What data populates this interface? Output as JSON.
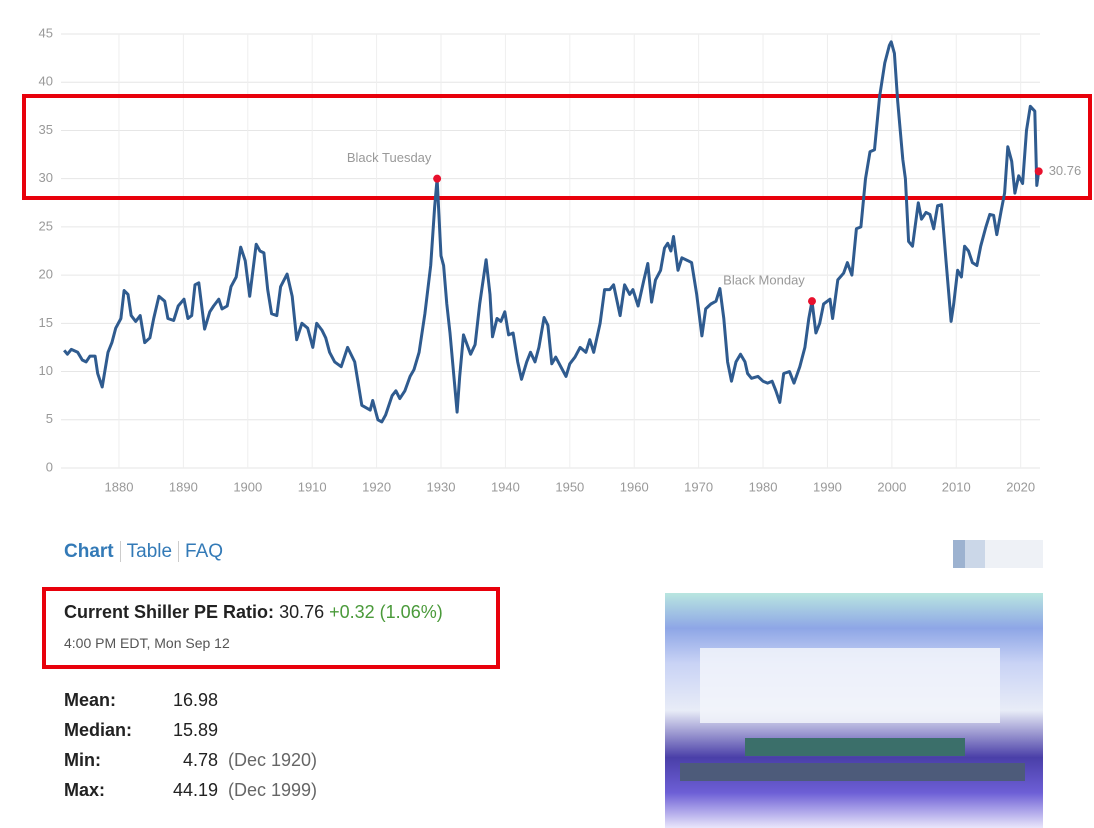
{
  "chart_data": {
    "type": "line",
    "color": "#2f5b8f",
    "xlim": [
      1871,
      2023
    ],
    "ylim": [
      0,
      45
    ],
    "xticks": [
      1880,
      1890,
      1900,
      1910,
      1920,
      1930,
      1940,
      1950,
      1960,
      1970,
      1980,
      1990,
      2000,
      2010,
      2020
    ],
    "yticks": [
      0,
      5,
      10,
      15,
      20,
      25,
      30,
      35,
      40,
      45
    ],
    "grid": true,
    "x": [
      1871.5,
      1872,
      1872.6,
      1873.6,
      1874.3,
      1874.9,
      1875.5,
      1876.3,
      1876.7,
      1877.4,
      1878.3,
      1878.9,
      1879.5,
      1880.3,
      1880.8,
      1881.4,
      1881.9,
      1882.6,
      1883.3,
      1884,
      1884.8,
      1885.4,
      1886.2,
      1887.1,
      1887.6,
      1888.5,
      1889.2,
      1890.1,
      1890.7,
      1891.3,
      1891.8,
      1892.4,
      1893.3,
      1894.1,
      1894.7,
      1895.5,
      1896,
      1896.8,
      1897.4,
      1898.2,
      1898.9,
      1899.6,
      1900.3,
      1901.3,
      1901.9,
      1902.5,
      1903.1,
      1903.7,
      1904.5,
      1905.1,
      1906.1,
      1906.9,
      1907.6,
      1908.4,
      1909.3,
      1910.1,
      1910.7,
      1911.5,
      1912.1,
      1912.7,
      1913.5,
      1914.5,
      1915.5,
      1916.6,
      1917.7,
      1919,
      1919.4,
      1920.2,
      1920.8,
      1921.4,
      1922.4,
      1923,
      1923.6,
      1924.4,
      1925.2,
      1925.8,
      1926.6,
      1927.5,
      1928.4,
      1929,
      1929.4,
      1930,
      1930.4,
      1930.9,
      1931.4,
      1932.5,
      1932.9,
      1933.5,
      1934.6,
      1935.3,
      1936,
      1937,
      1937.6,
      1938,
      1938.7,
      1939.3,
      1939.9,
      1940.5,
      1941.2,
      1941.9,
      1942.5,
      1943.3,
      1943.9,
      1944.6,
      1945.2,
      1946,
      1946.6,
      1947.2,
      1947.8,
      1948.6,
      1949.4,
      1950,
      1950.8,
      1951.6,
      1952.5,
      1953.1,
      1953.7,
      1954.7,
      1955.4,
      1956.2,
      1956.8,
      1957.8,
      1958.5,
      1959.3,
      1959.8,
      1960.6,
      1961.5,
      1962.1,
      1962.7,
      1963.3,
      1964.1,
      1964.7,
      1965.2,
      1965.7,
      1966.1,
      1966.8,
      1967.4,
      1968.3,
      1968.9,
      1969.7,
      1970.5,
      1971.1,
      1971.9,
      1972.7,
      1973.3,
      1973.9,
      1974.5,
      1975.1,
      1975.8,
      1976.5,
      1977.2,
      1977.6,
      1978.2,
      1979.2,
      1980,
      1980.7,
      1981.4,
      1982,
      1982.6,
      1983.2,
      1984.1,
      1984.8,
      1985.7,
      1986.5,
      1987.1,
      1987.6,
      1988.2,
      1988.8,
      1989.4,
      1990.4,
      1990.8,
      1991.6,
      1992.5,
      1993.1,
      1993.8,
      1994.5,
      1995.2,
      1995.9,
      1996.6,
      1997.3,
      1998.1,
      1998.9,
      1999.6,
      1999.9,
      2000.4,
      2000.9,
      2001.7,
      2002.1,
      2002.6,
      2003.2,
      2004.1,
      2004.6,
      2005.3,
      2005.9,
      2006.5,
      2007.1,
      2007.7,
      2008.4,
      2009.2,
      2009.6,
      2010.2,
      2010.8,
      2011.3,
      2011.9,
      2012.5,
      2013.2,
      2013.8,
      2014.6,
      2015.2,
      2015.8,
      2016.3,
      2017,
      2017.5,
      2018,
      2018.6,
      2019.1,
      2019.7,
      2020.3,
      2020.9,
      2021.5,
      2022.2,
      2022.5,
      2022.8
    ],
    "values": [
      12.2,
      11.8,
      12.3,
      12.0,
      11.2,
      11.0,
      11.6,
      11.6,
      9.8,
      8.4,
      12,
      13,
      14.5,
      15.5,
      18.4,
      18.0,
      15.8,
      15.2,
      15.8,
      13.0,
      13.5,
      15.5,
      17.8,
      17.3,
      15.5,
      15.3,
      16.8,
      17.5,
      15.5,
      15.8,
      19.0,
      19.2,
      14.4,
      16.2,
      16.8,
      17.5,
      16.5,
      16.8,
      18.8,
      19.8,
      22.9,
      21.5,
      17.8,
      23.2,
      22.5,
      22.3,
      18.5,
      16.0,
      15.8,
      18.8,
      20.1,
      17.8,
      13.3,
      15.0,
      14.5,
      12.5,
      15.0,
      14.3,
      13.5,
      12.0,
      11.0,
      10.5,
      12.5,
      11.0,
      6.5,
      6.0,
      7.0,
      5.0,
      4.78,
      5.5,
      7.5,
      8.0,
      7.2,
      8.0,
      9.5,
      10.2,
      12.0,
      16.0,
      21.0,
      27.0,
      30.0,
      22.0,
      21.0,
      17.0,
      14.0,
      5.8,
      9.5,
      13.8,
      11.8,
      12.8,
      17.0,
      21.6,
      18.0,
      13.6,
      15.5,
      15.2,
      16.2,
      13.8,
      14.0,
      11.0,
      9.2,
      11.0,
      12.0,
      11.0,
      12.5,
      15.6,
      14.8,
      10.8,
      11.5,
      10.5,
      9.5,
      10.8,
      11.5,
      12.5,
      12.0,
      13.3,
      12.0,
      15,
      18.5,
      18.5,
      19,
      15.8,
      19,
      18,
      18.5,
      16.8,
      19.5,
      21.2,
      17.2,
      19.5,
      20.5,
      22.8,
      23.3,
      22.5,
      24.0,
      20.5,
      21.8,
      21.5,
      21.3,
      18.0,
      13.7,
      16.5,
      17.0,
      17.3,
      18.6,
      15.5,
      11.0,
      9.0,
      11.0,
      11.8,
      11.0,
      9.8,
      9.3,
      9.5,
      9.0,
      8.8,
      9.0,
      8.0,
      6.8,
      9.8,
      10.0,
      8.8,
      10.5,
      12.5,
      15.5,
      17.3,
      14.0,
      15.0,
      17.0,
      17.5,
      15.5,
      19.5,
      20.2,
      21.3,
      20.0,
      24.8,
      25,
      30,
      32.8,
      33,
      38.5,
      42,
      43.8,
      44.19,
      43,
      38,
      32,
      30,
      23.5,
      23,
      27.5,
      25.8,
      26.5,
      26.3,
      24.8,
      27.2,
      27.3,
      21.5,
      15.2,
      17.0,
      20.5,
      19.8,
      23.0,
      22.5,
      21.3,
      21.0,
      23.0,
      25.0,
      26.3,
      26.2,
      24.2,
      26.8,
      28.5,
      33.3,
      31.8,
      28.5,
      30.3,
      29.5,
      35,
      37.5,
      37.0,
      29.3,
      30.76
    ],
    "annotations": [
      {
        "text": "Black Tuesday",
        "x": 1929.4,
        "y": 30.0
      },
      {
        "text": "Black Monday",
        "x": 1987.6,
        "y": 17.3
      },
      {
        "text": "30.76",
        "x": 2022.8,
        "y": 30.76
      }
    ]
  },
  "nav": [
    "Chart",
    "Table",
    "FAQ"
  ],
  "current": {
    "label": "Current Shiller PE Ratio:",
    "value": 30.76,
    "change": "+0.32 (1.06%)",
    "time": "4:00 PM EDT, Mon Sep 12"
  },
  "stats": [
    {
      "label": "Mean:",
      "value": 16.98
    },
    {
      "label": "Median:",
      "value": 15.89
    },
    {
      "label": "Min:",
      "value": 4.78,
      "date": "(Dec 1920)"
    },
    {
      "label": "Max:",
      "value": 44.19,
      "date": "(Dec 1999)"
    }
  ]
}
